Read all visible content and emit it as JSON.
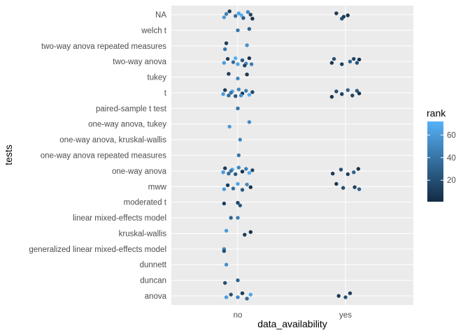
{
  "chart_data": {
    "type": "scatter",
    "subtype": "jitter",
    "title": "",
    "xlabel": "data_availability",
    "ylabel": "tests",
    "x_categories": [
      "no",
      "yes"
    ],
    "y_categories": [
      "anova",
      "duncan",
      "dunnett",
      "generalized linear mixed-effects model",
      "kruskal-wallis",
      "linear mixed-effects model",
      "moderated t",
      "mww",
      "one-way anova",
      "one-way anova repeated measures",
      "one-way anova, kruskal-wallis",
      "one-way anova, tukey",
      "paired-sample t test",
      "t",
      "tukey",
      "two-way anova",
      "two-way anova repeated measures",
      "welch t",
      "NA"
    ],
    "legend": {
      "title": "rank",
      "ticks": [
        20,
        40,
        60
      ],
      "range": [
        1,
        72
      ],
      "position": "right",
      "low_color": "#132B43",
      "high_color": "#56B1F7"
    },
    "panel_background": "#EBEBEB",
    "grid": true,
    "points": [
      {
        "x": "no",
        "y": "NA",
        "rank": 60,
        "dx": -0.3,
        "dy": 0.2
      },
      {
        "x": "no",
        "y": "NA",
        "rank": 10,
        "dx": -0.18,
        "dy": -0.25
      },
      {
        "x": "no",
        "y": "NA",
        "rank": 35,
        "dx": -0.05,
        "dy": 0.1
      },
      {
        "x": "no",
        "y": "NA",
        "rank": 65,
        "dx": 0.02,
        "dy": -0.1
      },
      {
        "x": "no",
        "y": "NA",
        "rank": 25,
        "dx": 0.12,
        "dy": 0.25
      },
      {
        "x": "no",
        "y": "NA",
        "rank": 50,
        "dx": 0.22,
        "dy": -0.2
      },
      {
        "x": "no",
        "y": "NA",
        "rank": 5,
        "dx": 0.32,
        "dy": 0.3
      },
      {
        "x": "no",
        "y": "NA",
        "rank": 45,
        "dx": -0.25,
        "dy": -0.05
      },
      {
        "x": "no",
        "y": "NA",
        "rank": 70,
        "dx": 0.08,
        "dy": 0.05
      },
      {
        "x": "no",
        "y": "NA",
        "rank": 15,
        "dx": 0.28,
        "dy": 0.0
      },
      {
        "x": "yes",
        "y": "NA",
        "rank": 8,
        "dx": -0.2,
        "dy": -0.1
      },
      {
        "x": "yes",
        "y": "NA",
        "rank": 20,
        "dx": -0.08,
        "dy": 0.3
      },
      {
        "x": "yes",
        "y": "NA",
        "rank": 12,
        "dx": -0.04,
        "dy": 0.15
      },
      {
        "x": "yes",
        "y": "NA",
        "rank": 6,
        "dx": 0.05,
        "dy": 0.05
      },
      {
        "x": "no",
        "y": "welch t",
        "rank": 40,
        "dx": 0.0,
        "dy": 0.0
      },
      {
        "x": "no",
        "y": "welch t",
        "rank": 30,
        "dx": 0.25,
        "dy": -0.1
      },
      {
        "x": "no",
        "y": "two-way anova repeated measures",
        "rank": 40,
        "dx": -0.28,
        "dy": 0.25
      },
      {
        "x": "no",
        "y": "two-way anova repeated measures",
        "rank": 10,
        "dx": -0.25,
        "dy": -0.2
      },
      {
        "x": "no",
        "y": "two-way anova repeated measures",
        "rank": 55,
        "dx": 0.2,
        "dy": -0.05
      },
      {
        "x": "no",
        "y": "two-way anova",
        "rank": 60,
        "dx": -0.3,
        "dy": 0.1
      },
      {
        "x": "no",
        "y": "two-way anova",
        "rank": 10,
        "dx": -0.22,
        "dy": -0.2
      },
      {
        "x": "no",
        "y": "two-way anova",
        "rank": 35,
        "dx": -0.1,
        "dy": 0.05
      },
      {
        "x": "no",
        "y": "two-way anova",
        "rank": 65,
        "dx": 0.0,
        "dy": 0.2
      },
      {
        "x": "no",
        "y": "two-way anova",
        "rank": 25,
        "dx": 0.1,
        "dy": -0.1
      },
      {
        "x": "no",
        "y": "two-way anova",
        "rank": 50,
        "dx": 0.18,
        "dy": 0.15
      },
      {
        "x": "no",
        "y": "two-way anova",
        "rank": 5,
        "dx": 0.25,
        "dy": -0.25
      },
      {
        "x": "no",
        "y": "two-way anova",
        "rank": 45,
        "dx": 0.3,
        "dy": 0.2
      },
      {
        "x": "no",
        "y": "two-way anova",
        "rank": 70,
        "dx": -0.05,
        "dy": -0.25
      },
      {
        "x": "no",
        "y": "two-way anova",
        "rank": 15,
        "dx": 0.15,
        "dy": 0.3
      },
      {
        "x": "yes",
        "y": "two-way anova",
        "rank": 8,
        "dx": -0.3,
        "dy": 0.1
      },
      {
        "x": "yes",
        "y": "two-way anova",
        "rank": 20,
        "dx": -0.25,
        "dy": -0.2
      },
      {
        "x": "yes",
        "y": "two-way anova",
        "rank": 12,
        "dx": -0.08,
        "dy": 0.2
      },
      {
        "x": "yes",
        "y": "two-way anova",
        "rank": 30,
        "dx": 0.1,
        "dy": 0.0
      },
      {
        "x": "yes",
        "y": "two-way anova",
        "rank": 15,
        "dx": 0.18,
        "dy": -0.2
      },
      {
        "x": "yes",
        "y": "two-way anova",
        "rank": 22,
        "dx": 0.25,
        "dy": 0.1
      },
      {
        "x": "yes",
        "y": "two-way anova",
        "rank": 6,
        "dx": 0.3,
        "dy": -0.15
      },
      {
        "x": "no",
        "y": "tukey",
        "rank": 12,
        "dx": -0.2,
        "dy": -0.25
      },
      {
        "x": "no",
        "y": "tukey",
        "rank": 50,
        "dx": 0.0,
        "dy": 0.1
      },
      {
        "x": "no",
        "y": "tukey",
        "rank": 8,
        "dx": 0.2,
        "dy": -0.2
      },
      {
        "x": "no",
        "y": "t",
        "rank": 60,
        "dx": -0.32,
        "dy": 0.1
      },
      {
        "x": "no",
        "y": "t",
        "rank": 10,
        "dx": -0.28,
        "dy": -0.2
      },
      {
        "x": "no",
        "y": "t",
        "rank": 35,
        "dx": -0.2,
        "dy": 0.2
      },
      {
        "x": "no",
        "y": "t",
        "rank": 65,
        "dx": -0.12,
        "dy": -0.1
      },
      {
        "x": "no",
        "y": "t",
        "rank": 25,
        "dx": -0.05,
        "dy": 0.25
      },
      {
        "x": "no",
        "y": "t",
        "rank": 50,
        "dx": 0.02,
        "dy": -0.25
      },
      {
        "x": "no",
        "y": "t",
        "rank": 5,
        "dx": 0.1,
        "dy": 0.05
      },
      {
        "x": "no",
        "y": "t",
        "rank": 45,
        "dx": 0.18,
        "dy": -0.15
      },
      {
        "x": "no",
        "y": "t",
        "rank": 70,
        "dx": 0.25,
        "dy": 0.15
      },
      {
        "x": "no",
        "y": "t",
        "rank": 15,
        "dx": 0.32,
        "dy": -0.05
      },
      {
        "x": "no",
        "y": "t",
        "rank": 40,
        "dx": -0.15,
        "dy": 0.0
      },
      {
        "x": "no",
        "y": "t",
        "rank": 55,
        "dx": 0.07,
        "dy": 0.2
      },
      {
        "x": "yes",
        "y": "t",
        "rank": 8,
        "dx": -0.3,
        "dy": 0.3
      },
      {
        "x": "yes",
        "y": "t",
        "rank": 20,
        "dx": -0.2,
        "dy": -0.1
      },
      {
        "x": "yes",
        "y": "t",
        "rank": 12,
        "dx": -0.08,
        "dy": 0.1
      },
      {
        "x": "yes",
        "y": "t",
        "rank": 30,
        "dx": 0.05,
        "dy": -0.2
      },
      {
        "x": "yes",
        "y": "t",
        "rank": 15,
        "dx": 0.15,
        "dy": 0.2
      },
      {
        "x": "yes",
        "y": "t",
        "rank": 22,
        "dx": 0.25,
        "dy": -0.15
      },
      {
        "x": "yes",
        "y": "t",
        "rank": 6,
        "dx": 0.3,
        "dy": 0.05
      },
      {
        "x": "no",
        "y": "paired-sample t test",
        "rank": 40,
        "dx": 0.0,
        "dy": 0.0
      },
      {
        "x": "no",
        "y": "one-way anova, tukey",
        "rank": 60,
        "dx": -0.18,
        "dy": 0.2
      },
      {
        "x": "no",
        "y": "one-way anova, tukey",
        "rank": 50,
        "dx": 0.25,
        "dy": -0.15
      },
      {
        "x": "no",
        "y": "one-way anova, kruskal-wallis",
        "rank": 50,
        "dx": 0.05,
        "dy": 0.0
      },
      {
        "x": "no",
        "y": "one-way anova repeated measures",
        "rank": 40,
        "dx": 0.02,
        "dy": 0.0
      },
      {
        "x": "no",
        "y": "one-way anova",
        "rank": 60,
        "dx": -0.32,
        "dy": 0.1
      },
      {
        "x": "no",
        "y": "one-way anova",
        "rank": 10,
        "dx": -0.28,
        "dy": -0.2
      },
      {
        "x": "no",
        "y": "one-way anova",
        "rank": 35,
        "dx": -0.2,
        "dy": 0.2
      },
      {
        "x": "no",
        "y": "one-way anova",
        "rank": 65,
        "dx": -0.12,
        "dy": -0.1
      },
      {
        "x": "no",
        "y": "one-way anova",
        "rank": 25,
        "dx": -0.05,
        "dy": 0.25
      },
      {
        "x": "no",
        "y": "one-way anova",
        "rank": 50,
        "dx": 0.02,
        "dy": -0.25
      },
      {
        "x": "no",
        "y": "one-way anova",
        "rank": 5,
        "dx": 0.1,
        "dy": 0.05
      },
      {
        "x": "no",
        "y": "one-way anova",
        "rank": 45,
        "dx": 0.18,
        "dy": -0.15
      },
      {
        "x": "no",
        "y": "one-way anova",
        "rank": 70,
        "dx": 0.25,
        "dy": 0.15
      },
      {
        "x": "no",
        "y": "one-way anova",
        "rank": 15,
        "dx": 0.32,
        "dy": -0.05
      },
      {
        "x": "no",
        "y": "one-way anova",
        "rank": 40,
        "dx": -0.15,
        "dy": 0.0
      },
      {
        "x": "yes",
        "y": "one-way anova",
        "rank": 8,
        "dx": -0.28,
        "dy": 0.2
      },
      {
        "x": "yes",
        "y": "one-way anova",
        "rank": 20,
        "dx": -0.1,
        "dy": -0.1
      },
      {
        "x": "yes",
        "y": "one-way anova",
        "rank": 12,
        "dx": 0.05,
        "dy": 0.25
      },
      {
        "x": "yes",
        "y": "one-way anova",
        "rank": 30,
        "dx": 0.18,
        "dy": 0.1
      },
      {
        "x": "yes",
        "y": "one-way anova",
        "rank": 6,
        "dx": 0.28,
        "dy": -0.15
      },
      {
        "x": "no",
        "y": "mww",
        "rank": 60,
        "dx": -0.3,
        "dy": 0.2
      },
      {
        "x": "no",
        "y": "mww",
        "rank": 10,
        "dx": -0.22,
        "dy": -0.1
      },
      {
        "x": "no",
        "y": "mww",
        "rank": 35,
        "dx": -0.1,
        "dy": 0.15
      },
      {
        "x": "no",
        "y": "mww",
        "rank": 65,
        "dx": 0.0,
        "dy": -0.2
      },
      {
        "x": "no",
        "y": "mww",
        "rank": 25,
        "dx": 0.1,
        "dy": 0.25
      },
      {
        "x": "no",
        "y": "mww",
        "rank": 50,
        "dx": 0.2,
        "dy": -0.15
      },
      {
        "x": "no",
        "y": "mww",
        "rank": 5,
        "dx": 0.28,
        "dy": 0.05
      },
      {
        "x": "yes",
        "y": "mww",
        "rank": 8,
        "dx": -0.2,
        "dy": -0.2
      },
      {
        "x": "yes",
        "y": "mww",
        "rank": 20,
        "dx": -0.05,
        "dy": 0.1
      },
      {
        "x": "yes",
        "y": "mww",
        "rank": 12,
        "dx": 0.2,
        "dy": 0.05
      },
      {
        "x": "yes",
        "y": "mww",
        "rank": 30,
        "dx": 0.3,
        "dy": 0.2
      },
      {
        "x": "no",
        "y": "moderated t",
        "rank": 10,
        "dx": -0.3,
        "dy": 0.1
      },
      {
        "x": "no",
        "y": "moderated t",
        "rank": 15,
        "dx": 0.0,
        "dy": 0.05
      },
      {
        "x": "no",
        "y": "moderated t",
        "rank": 25,
        "dx": 0.05,
        "dy": 0.25
      },
      {
        "x": "no",
        "y": "linear mixed-effects model",
        "rank": 30,
        "dx": -0.15,
        "dy": 0.0
      },
      {
        "x": "no",
        "y": "linear mixed-effects model",
        "rank": 45,
        "dx": 0.0,
        "dy": 0.0
      },
      {
        "x": "no",
        "y": "kruskal-wallis",
        "rank": 60,
        "dx": -0.25,
        "dy": -0.2
      },
      {
        "x": "no",
        "y": "kruskal-wallis",
        "rank": 10,
        "dx": 0.15,
        "dy": 0.1
      },
      {
        "x": "no",
        "y": "kruskal-wallis",
        "rank": 5,
        "dx": 0.28,
        "dy": -0.1
      },
      {
        "x": "no",
        "y": "generalized linear mixed-effects model",
        "rank": 50,
        "dx": -0.3,
        "dy": 0.0
      },
      {
        "x": "no",
        "y": "generalized linear mixed-effects model",
        "rank": 20,
        "dx": -0.3,
        "dy": 0.15
      },
      {
        "x": "no",
        "y": "dunnett",
        "rank": 55,
        "dx": -0.25,
        "dy": 0.0
      },
      {
        "x": "no",
        "y": "duncan",
        "rank": 20,
        "dx": -0.28,
        "dy": 0.2
      },
      {
        "x": "no",
        "y": "duncan",
        "rank": 30,
        "dx": 0.0,
        "dy": 0.0
      },
      {
        "x": "no",
        "y": "anova",
        "rank": 60,
        "dx": -0.25,
        "dy": 0.1
      },
      {
        "x": "no",
        "y": "anova",
        "rank": 20,
        "dx": -0.15,
        "dy": -0.1
      },
      {
        "x": "no",
        "y": "anova",
        "rank": 50,
        "dx": 0.0,
        "dy": 0.1
      },
      {
        "x": "no",
        "y": "anova",
        "rank": 10,
        "dx": 0.1,
        "dy": -0.2
      },
      {
        "x": "no",
        "y": "anova",
        "rank": 35,
        "dx": 0.2,
        "dy": 0.2
      },
      {
        "x": "no",
        "y": "anova",
        "rank": 65,
        "dx": 0.28,
        "dy": -0.1
      },
      {
        "x": "yes",
        "y": "anova",
        "rank": 8,
        "dx": -0.15,
        "dy": 0.0
      },
      {
        "x": "yes",
        "y": "anova",
        "rank": 20,
        "dx": 0.0,
        "dy": 0.1
      },
      {
        "x": "yes",
        "y": "anova",
        "rank": 12,
        "dx": 0.1,
        "dy": -0.2
      }
    ]
  }
}
